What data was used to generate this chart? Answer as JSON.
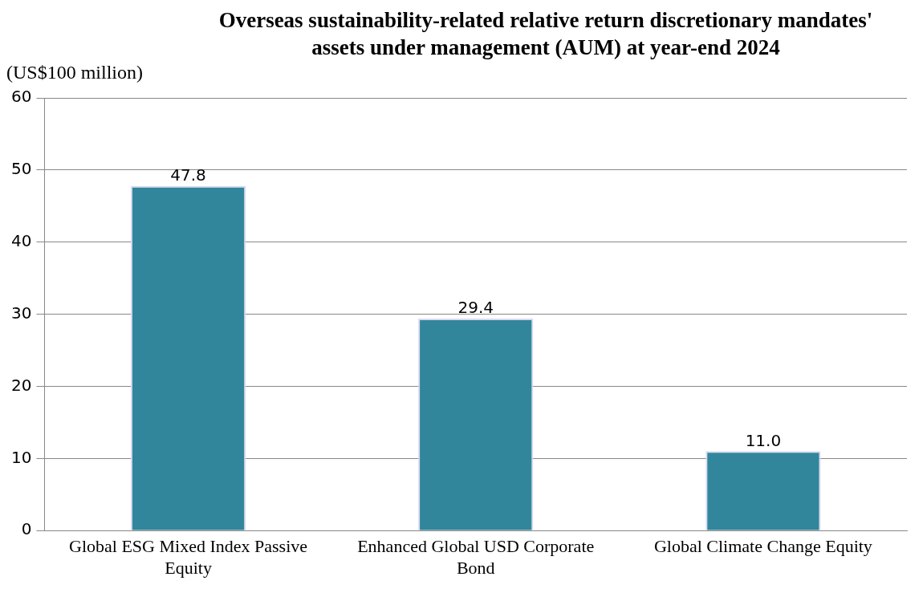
{
  "chart_data": {
    "type": "bar",
    "title": "Overseas sustainability-related relative return discretionary mandates' assets under management (AUM) at year-end 2024",
    "ylabel": "(US$100 million)",
    "categories": [
      "Global ESG Mixed Index Passive Equity",
      "Enhanced Global USD Corporate Bond",
      "Global Climate Change Equity"
    ],
    "values": [
      47.8,
      29.4,
      11.0
    ],
    "value_labels": [
      "47.8",
      "29.4",
      "11.0"
    ],
    "color": "#31869b",
    "ylim": [
      0,
      60
    ],
    "yticks": [
      0,
      10,
      20,
      30,
      40,
      50,
      60
    ],
    "grid": "y"
  }
}
